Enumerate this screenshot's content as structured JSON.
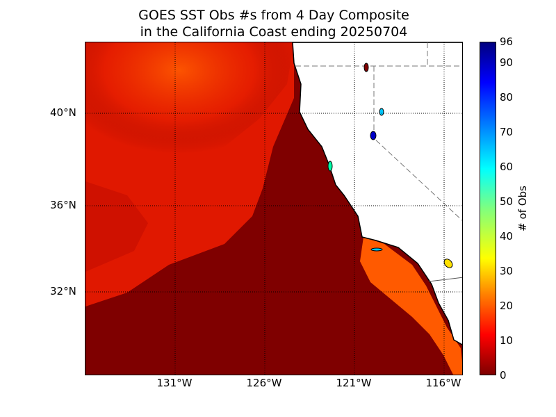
{
  "title": {
    "line1": "GOES SST Obs #s from 4 Day Composite",
    "line2": "in the California Coast ending 20250704"
  },
  "map": {
    "lon_range": [
      -135.0,
      -115.0
    ],
    "lat_range": [
      28.0,
      43.5
    ],
    "x_ticks": [
      {
        "value": -131,
        "label": "131°W"
      },
      {
        "value": -126,
        "label": "126°W"
      },
      {
        "value": -121,
        "label": "121°W"
      },
      {
        "value": -116,
        "label": "116°W"
      }
    ],
    "y_ticks": [
      {
        "value": 40,
        "label": "40°N"
      },
      {
        "value": 36,
        "label": "36°N"
      },
      {
        "value": 32,
        "label": "32°N"
      }
    ],
    "colors": {
      "ocean_low": "#7f0000",
      "ocean_mid": "#d81400",
      "land": "#ffffff"
    }
  },
  "colorbar": {
    "label": "# of Obs",
    "range": [
      0,
      96
    ],
    "ticks": [
      "0",
      "10",
      "20",
      "30",
      "40",
      "50",
      "60",
      "70",
      "80",
      "90",
      "96"
    ],
    "tick_values": [
      0,
      10,
      20,
      30,
      40,
      50,
      60,
      70,
      80,
      90,
      96
    ]
  }
}
